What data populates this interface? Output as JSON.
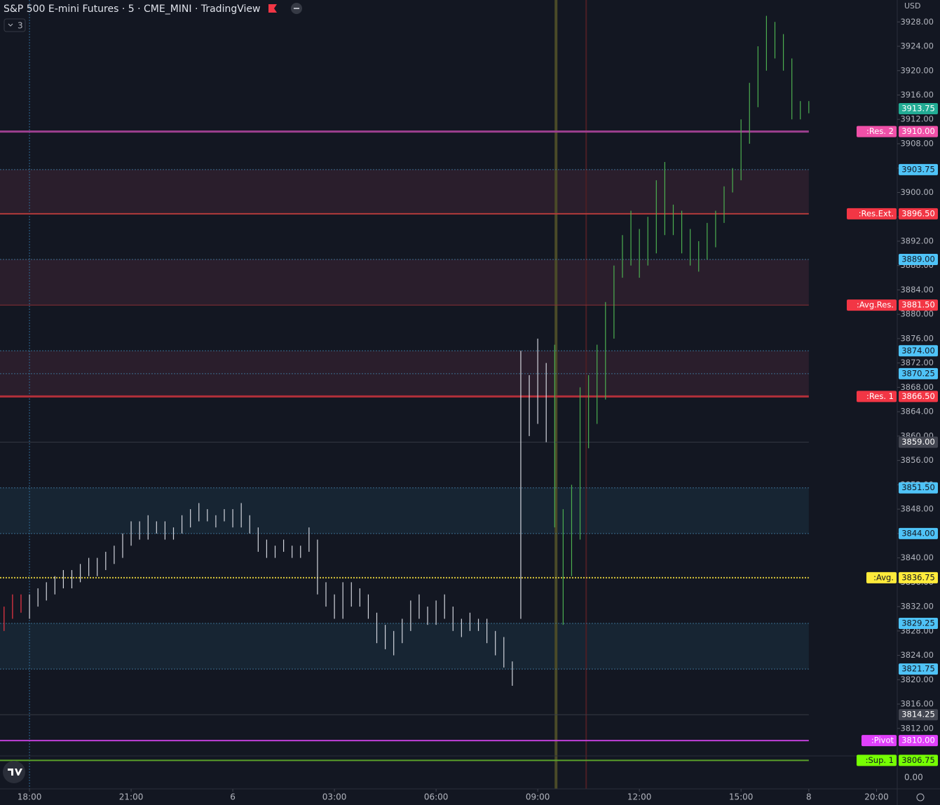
{
  "chart_data": {
    "type": "ohlc",
    "title": "S&P 500 E-mini Futures · 5 · CME_MINI · TradingView",
    "indicator_count": "3",
    "currency": "USD",
    "lower_pane_label": "0.00",
    "xlim": [
      -0.87,
      25.61
    ],
    "ylim": [
      3807.6,
      3931.6
    ],
    "xticks": [
      {
        "value": 0,
        "label": "18:00"
      },
      {
        "value": 3,
        "label": "21:00"
      },
      6,
      {
        "value": 9,
        "label": "03:00"
      },
      {
        "value": 12,
        "label": "06:00"
      },
      {
        "value": 15,
        "label": "09:00"
      },
      {
        "value": 18,
        "label": "12:00"
      },
      {
        "value": 21,
        "label": "15:00"
      },
      {
        "value": 23,
        "label": "8"
      },
      {
        "value": 25,
        "label": "20:00"
      }
    ],
    "yticks": [
      {
        "value": 3812,
        "label": "3812.00"
      },
      {
        "value": 3816,
        "label": "3816.00"
      },
      {
        "value": 3820,
        "label": "3820.00"
      },
      {
        "value": 3824,
        "label": "3824.00"
      },
      {
        "value": 3828,
        "label": "3828.00"
      },
      {
        "value": 3832,
        "label": "3832.00"
      },
      {
        "value": 3836,
        "label": "3836.00"
      },
      {
        "value": 3840,
        "label": "3840.00"
      },
      {
        "value": 3844,
        "label": "3844.00"
      },
      {
        "value": 3848,
        "label": "3848.00"
      },
      {
        "value": 3852,
        "label": "3852.00"
      },
      {
        "value": 3856,
        "label": "3856.00"
      },
      {
        "value": 3860,
        "label": "3860.00"
      },
      {
        "value": 3864,
        "label": "3864.00"
      },
      {
        "value": 3868,
        "label": "3868.00"
      },
      {
        "value": 3872,
        "label": "3872.00"
      },
      {
        "value": 3876,
        "label": "3876.00"
      },
      {
        "value": 3880,
        "label": "3880.00"
      },
      {
        "value": 3884,
        "label": "3884.00"
      },
      {
        "value": 3888,
        "label": "3888.00"
      },
      {
        "value": 3892,
        "label": "3892.00"
      },
      {
        "value": 3896,
        "label": "3896.00"
      },
      {
        "value": 3900,
        "label": "3900.00"
      },
      {
        "value": 3904,
        "label": "3904.00"
      },
      {
        "value": 3908,
        "label": "3908.00"
      },
      {
        "value": 3912,
        "label": "3912.00"
      },
      {
        "value": 3916,
        "label": "3916.00"
      },
      {
        "value": 3920,
        "label": "3920.00"
      },
      {
        "value": 3924,
        "label": "3924.00"
      },
      {
        "value": 3928,
        "label": "3928.00"
      }
    ],
    "series": [
      {
        "color": "#f23645",
        "x": [
          -0.75,
          -0.5,
          -0.25
        ],
        "high": [
          3832,
          3834,
          3834
        ],
        "low": [
          3828,
          3830,
          3831
        ]
      },
      {
        "color": "#d1d4dc",
        "x": [
          0,
          0.25,
          0.5,
          0.75,
          1,
          1.25,
          1.5,
          1.75,
          2,
          2.25,
          2.5,
          2.75,
          3,
          3.25,
          3.5,
          3.75,
          4,
          4.25,
          4.5,
          4.75,
          5,
          5.25,
          5.5,
          5.75,
          6,
          6.25,
          6.5,
          6.75,
          7,
          7.25,
          7.5,
          7.75,
          8,
          8.25,
          8.5,
          8.75,
          9,
          9.25,
          9.5,
          9.75,
          10,
          10.25,
          10.5,
          10.75,
          11,
          11.25,
          11.5,
          11.75,
          12,
          12.25,
          12.5,
          12.75,
          13,
          13.25,
          13.5,
          13.75,
          14,
          14.25,
          14.5,
          14.75,
          15,
          15.25
        ],
        "high": [
          3834,
          3835,
          3836,
          3837,
          3838,
          3838,
          3839,
          3840,
          3840,
          3841,
          3842,
          3844,
          3846,
          3846,
          3847,
          3846,
          3846,
          3845,
          3847,
          3848,
          3849,
          3848,
          3847,
          3848,
          3848,
          3849,
          3847,
          3845,
          3843,
          3842,
          3843,
          3842,
          3842,
          3845,
          3843,
          3836,
          3834,
          3836,
          3836,
          3835,
          3834,
          3831,
          3829,
          3828,
          3830,
          3833,
          3834,
          3832,
          3833,
          3834,
          3832,
          3830,
          3831,
          3830,
          3830,
          3828,
          3827,
          3823,
          3874,
          3870,
          3876,
          3872
        ],
        "low": [
          3830,
          3832,
          3833,
          3834,
          3835,
          3835,
          3836,
          3837,
          3837,
          3838,
          3839,
          3840,
          3842,
          3843,
          3843,
          3844,
          3843,
          3843,
          3844,
          3845,
          3846,
          3846,
          3845,
          3846,
          3845,
          3845,
          3844,
          3841,
          3840,
          3840,
          3841,
          3840,
          3840,
          3841,
          3834,
          3832,
          3830,
          3830,
          3832,
          3832,
          3830,
          3826,
          3825,
          3824,
          3826,
          3828,
          3830,
          3829,
          3829,
          3830,
          3828,
          3827,
          3828,
          3828,
          3826,
          3824,
          3822,
          3819,
          3830,
          3860,
          3862,
          3859
        ]
      },
      {
        "color": "#4caf50",
        "x": [
          15.5,
          15.75,
          16,
          16.25,
          16.5,
          16.75,
          17,
          17.25,
          17.5,
          17.75,
          18,
          18.25,
          18.5,
          18.75,
          19,
          19.25,
          19.5,
          19.75,
          20,
          20.25,
          20.5,
          20.75,
          21,
          21.25,
          21.5,
          21.75,
          22,
          22.25,
          22.5,
          22.75,
          23
        ],
        "high": [
          3875,
          3848,
          3852,
          3868,
          3870,
          3875,
          3882,
          3888,
          3893,
          3897,
          3894,
          3896,
          3902,
          3905,
          3898,
          3897,
          3894,
          3892,
          3895,
          3897,
          3901,
          3904,
          3912,
          3918,
          3924,
          3929,
          3928,
          3926,
          3922,
          3915,
          3915
        ],
        "low": [
          3845,
          3829,
          3837,
          3843,
          3858,
          3862,
          3866,
          3876,
          3886,
          3888,
          3886,
          3888,
          3890,
          3893,
          3893,
          3890,
          3888,
          3887,
          3889,
          3891,
          3895,
          3900,
          3902,
          3908,
          3914,
          3920,
          3922,
          3920,
          3912,
          3912,
          3913
        ]
      }
    ],
    "zones": [
      {
        "from": 3896.5,
        "to": 3903.75,
        "color": "#2a1e2c"
      },
      {
        "from": 3881.5,
        "to": 3889,
        "color": "#2a1e2c"
      },
      {
        "from": 3866.5,
        "to": 3874,
        "color": "#2a1e2c"
      },
      {
        "from": 3844,
        "to": 3851.5,
        "color": "#172533"
      },
      {
        "from": 3821.75,
        "to": 3829.25,
        "color": "#172533"
      }
    ],
    "levels": [
      {
        "name": ":Res. 2",
        "value": 3910,
        "label": "3910.00",
        "color": "#f050a8",
        "line_color": "#9c3f8f",
        "width": 3
      },
      {
        "value": 3903.75,
        "label": "3903.75",
        "color": "#4fc3f7",
        "line_color": "#3a6d8f",
        "width": 1,
        "dash": true
      },
      {
        "name": ":Res.Ext.",
        "value": 3896.5,
        "label": "3896.50",
        "color": "#f23645",
        "line_color": "#b23a3a",
        "width": 2
      },
      {
        "value": 3889,
        "label": "3889.00",
        "color": "#4fc3f7",
        "line_color": "#3a6d8f",
        "width": 1,
        "dash": true
      },
      {
        "name": ":Avg.Res.",
        "value": 3881.5,
        "label": "3881.50",
        "color": "#f23645",
        "line_color": "#8a2e35",
        "width": 1
      },
      {
        "value": 3874,
        "label": "3874.00",
        "color": "#4fc3f7",
        "line_color": "#3a6d8f",
        "width": 1,
        "dash": true
      },
      {
        "value": 3870.25,
        "label": "3870.25",
        "color": "#4fc3f7",
        "line_color": "#3a6d8f",
        "width": 1,
        "dash": true
      },
      {
        "name": ":Res. 1",
        "value": 3866.5,
        "label": "3866.50",
        "color": "#f23645",
        "line_color": "#b2303a",
        "width": 3
      },
      {
        "value": 3859,
        "label": "3859.00",
        "color": "#434651",
        "line_color": "#363a45",
        "width": 1
      },
      {
        "value": 3851.5,
        "label": "3851.50",
        "color": "#4fc3f7",
        "line_color": "#3a6d8f",
        "width": 1,
        "dash": true
      },
      {
        "value": 3844,
        "label": "3844.00",
        "color": "#4fc3f7",
        "line_color": "#3a6d8f",
        "width": 1,
        "dash": true
      },
      {
        "name": ":Avg.",
        "value": 3836.75,
        "label": "3836.75",
        "color": "#ffeb3b",
        "line_color": "#d8c53a",
        "width": 2,
        "dash": true
      },
      {
        "value": 3829.25,
        "label": "3829.25",
        "color": "#4fc3f7",
        "line_color": "#3a6d8f",
        "width": 1,
        "dash": true
      },
      {
        "value": 3821.75,
        "label": "3821.75",
        "color": "#4fc3f7",
        "line_color": "#3a6d8f",
        "width": 1,
        "dash": true
      },
      {
        "value": 3814.25,
        "label": "3814.25",
        "color": "#434651",
        "line_color": "#363a45",
        "width": 1
      },
      {
        "name": ":Pivot",
        "value": 3810,
        "label": "3810.00",
        "color": "#e040fb",
        "line_color": "#c040d8",
        "width": 2
      },
      {
        "name": ":Sup. 1",
        "value": 3806.75,
        "label": "3806.75",
        "color": "#76ff03",
        "line_color": "#5aa02a",
        "width": 2
      }
    ],
    "last_price": {
      "value": 3913.75,
      "label": "3913.75",
      "color": "#22ab94"
    },
    "vlines": [
      {
        "x": 0,
        "color": "#2f6a96",
        "dash": true
      },
      {
        "x": 15.54,
        "color": "#4a4a28",
        "width": 4
      },
      {
        "x": 16.43,
        "color": "#4a1e24",
        "width": 2
      }
    ]
  }
}
